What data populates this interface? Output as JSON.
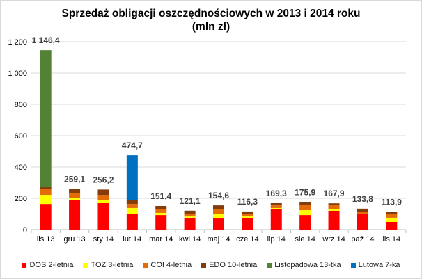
{
  "chart_data": {
    "type": "bar",
    "stacked": true,
    "title": "Sprzedaż obligacji oszczędnościowych w 2013 i 2014 roku",
    "subtitle": "(mln zł)",
    "xlabel": "",
    "ylabel": "",
    "ylim": [
      0,
      1200
    ],
    "yticks": [
      0,
      200,
      400,
      600,
      800,
      1000,
      1200
    ],
    "ytick_labels": [
      "0",
      "200",
      "400",
      "600",
      "800",
      "1 000",
      "1 200"
    ],
    "grid": true,
    "legend": "bottom",
    "categories": [
      "lis 13",
      "gru 13",
      "sty 14",
      "lut 14",
      "mar 14",
      "kwi 14",
      "maj 14",
      "cze 14",
      "lip 14",
      "sie 14",
      "wrz 14",
      "paź 14",
      "lis 14"
    ],
    "totals": [
      "1 146,4",
      "259,1",
      "256,2",
      "474,7",
      "151,4",
      "121,1",
      "154,6",
      "116,3",
      "169,3",
      "175,9",
      "167,9",
      "133,8",
      "113,9"
    ],
    "series": [
      {
        "name": "DOS 2-letnia",
        "color": "#ff0000",
        "values": [
          164,
          191,
          169,
          102,
          93,
          76,
          71,
          76,
          129,
          93,
          120,
          98,
          49
        ]
      },
      {
        "name": "TOZ 3-letnia",
        "color": "#ffff00",
        "values": [
          58,
          13,
          18,
          36,
          14,
          8,
          31,
          8,
          9,
          31,
          13,
          4,
          27
        ]
      },
      {
        "name": "COI 4-letnia",
        "color": "#e36c09",
        "values": [
          36,
          31,
          35,
          26,
          26,
          18,
          31,
          18,
          17,
          36,
          27,
          13,
          22
        ]
      },
      {
        "name": "EDO 10-letnia",
        "color": "#843c0c",
        "values": [
          13,
          24,
          34,
          27,
          18,
          19,
          22,
          14,
          14,
          16,
          8,
          19,
          16
        ]
      },
      {
        "name": "Listopadowa 13-tka",
        "color": "#548235",
        "values": [
          875,
          0,
          0,
          0,
          0,
          0,
          0,
          0,
          0,
          0,
          0,
          0,
          0
        ]
      },
      {
        "name": "Lutowa 7-ka",
        "color": "#0070c0",
        "values": [
          0,
          0,
          0,
          284,
          0,
          0,
          0,
          0,
          0,
          0,
          0,
          0,
          0
        ]
      }
    ]
  }
}
